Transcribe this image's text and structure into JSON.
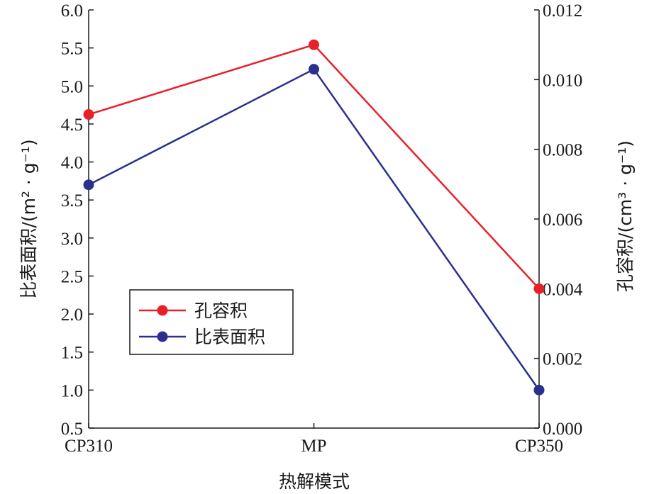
{
  "chart_data": {
    "type": "line",
    "xlabel": "热解模式",
    "ylabel_left": "比表面积/(m² · g⁻¹)",
    "ylabel_right": "孔容积/(cm³ · g⁻¹)",
    "categories": [
      "CP310",
      "MP",
      "CP350"
    ],
    "y_left": {
      "lim": [
        0.5,
        6.0
      ],
      "ticks": [
        0.5,
        1.0,
        1.5,
        2.0,
        2.5,
        3.0,
        3.5,
        4.0,
        4.5,
        5.0,
        5.5,
        6.0
      ],
      "tick_labels": [
        "0.5",
        "1.0",
        "1.5",
        "2.0",
        "2.5",
        "3.0",
        "3.5",
        "4.0",
        "4.5",
        "5.0",
        "5.5",
        "6.0"
      ]
    },
    "y_right": {
      "lim": [
        0.0,
        0.012
      ],
      "ticks": [
        0.0,
        0.002,
        0.004,
        0.006,
        0.008,
        0.01,
        0.012
      ],
      "tick_labels": [
        "0.000",
        "0.002",
        "0.004",
        "0.006",
        "0.008",
        "0.010",
        "0.012"
      ]
    },
    "series": [
      {
        "name": "孔容积",
        "axis": "right",
        "color": "#e8202a",
        "values": [
          0.009,
          0.011,
          0.004
        ]
      },
      {
        "name": "比表面积",
        "axis": "left",
        "color": "#2b2f8f",
        "values": [
          3.7,
          5.22,
          1.0
        ]
      }
    ],
    "legend_position": "bottom-left",
    "grid": false
  }
}
